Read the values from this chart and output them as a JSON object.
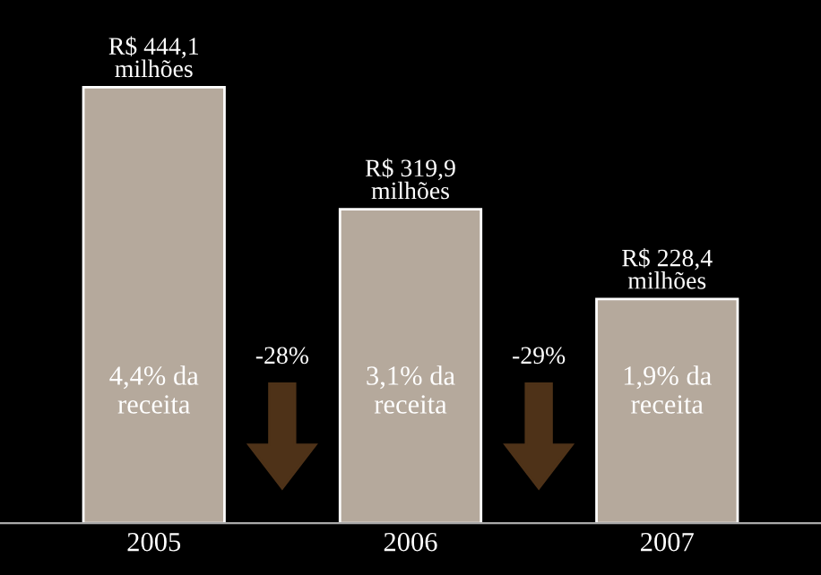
{
  "chart_data": {
    "type": "bar",
    "categories": [
      "2005",
      "2006",
      "2007"
    ],
    "values": [
      444.1,
      319.9,
      228.4
    ],
    "value_labels": [
      "R$ 444,1\nmilhões",
      "R$ 319,9\nmilhões",
      "R$ 228,4\nmilhões"
    ],
    "color": "#b5a99c",
    "annotations": [
      "4,4% da\nreceita",
      "-28%",
      "3,1% da\nreceita",
      "-29%",
      "1,9% da\nreceita"
    ]
  }
}
